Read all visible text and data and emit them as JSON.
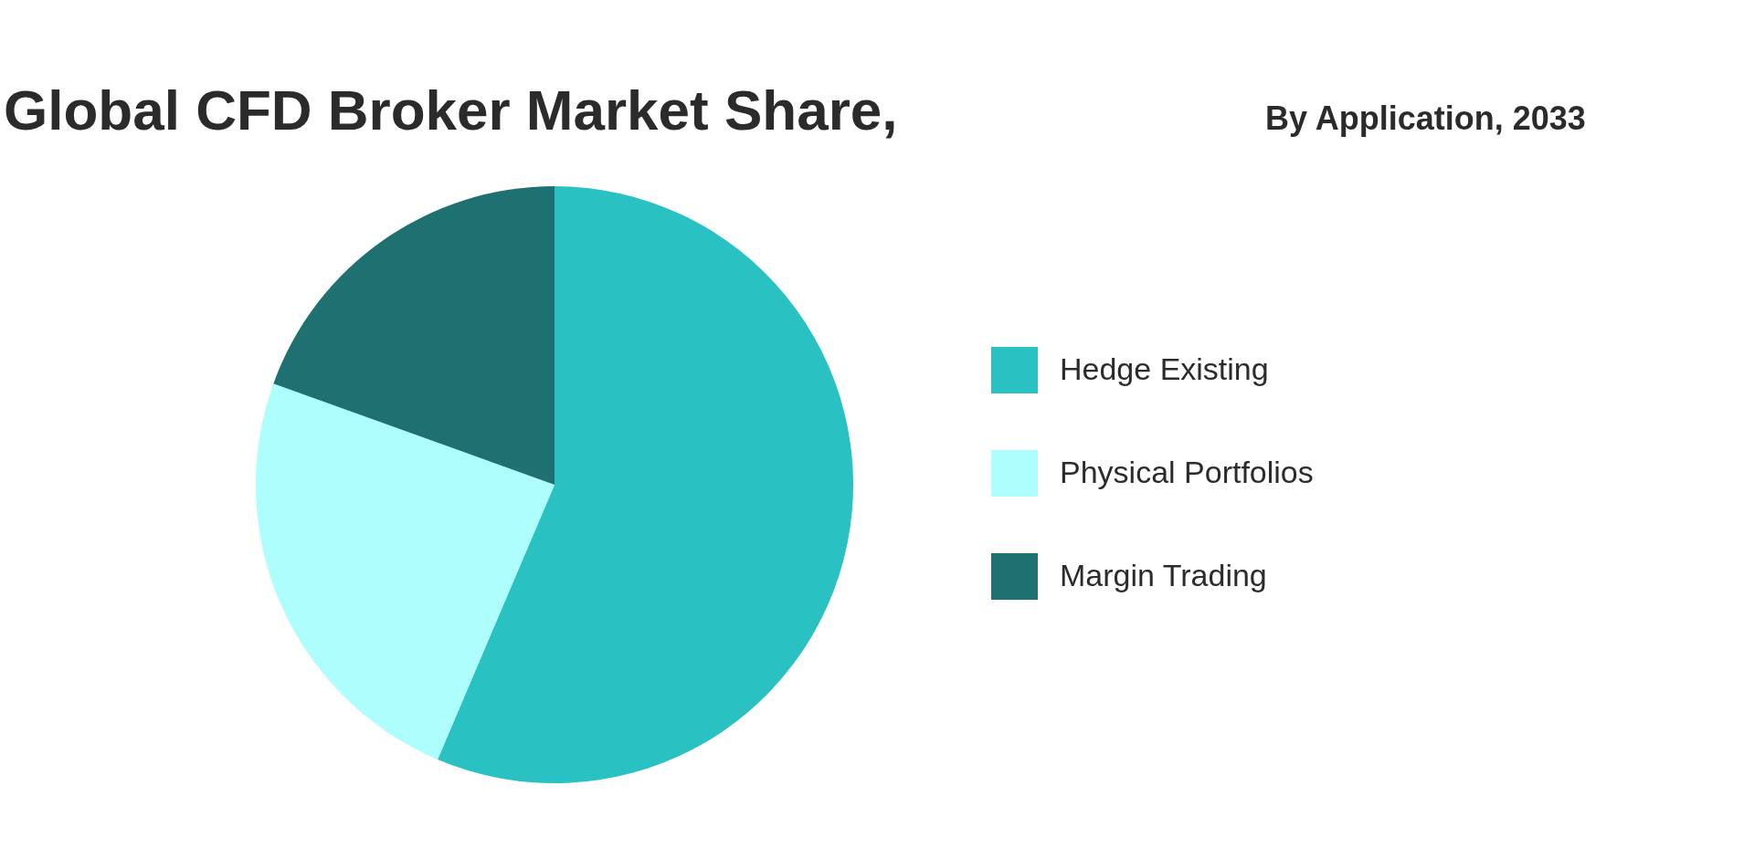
{
  "chart_data": {
    "type": "pie",
    "title": "Global CFD Broker Market Share,",
    "subtitle": "By Application, 2033",
    "categories": [
      "Hedge Existing",
      "Physical Portfolios",
      "Margin Trading"
    ],
    "values": [
      56.4,
      24.1,
      19.5
    ],
    "colors": [
      "#2ac1c3",
      "#adfefd",
      "#1f7070"
    ],
    "legend": "right"
  }
}
